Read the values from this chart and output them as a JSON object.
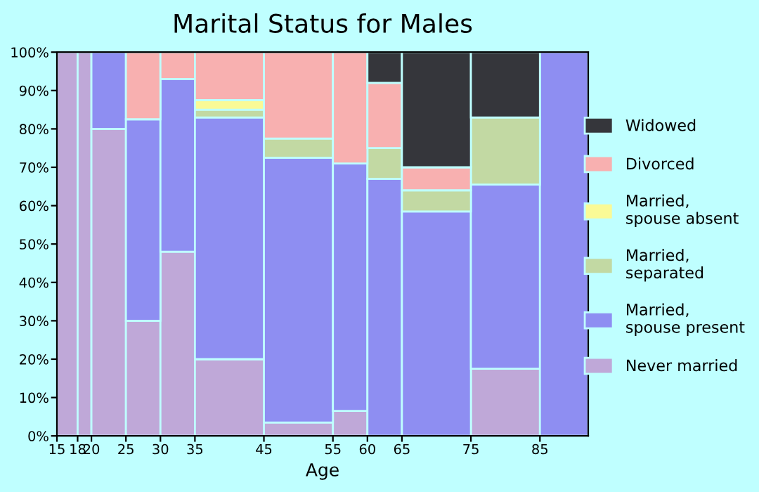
{
  "chart_data": {
    "type": "bar",
    "stacked": true,
    "title": "Marital Status for Males",
    "xlabel": "Age",
    "x": [
      16.5,
      19,
      22.5,
      27.5,
      32.5,
      40,
      50,
      57.5,
      62.5,
      70,
      80,
      88.5
    ],
    "xlim": [
      15,
      92
    ],
    "xticks": [
      15,
      18,
      20,
      25,
      30,
      35,
      45,
      55,
      60,
      65,
      75,
      85
    ],
    "ylim": [
      0,
      100
    ],
    "yticks": [
      {
        "value": 0,
        "label": "0%"
      },
      {
        "value": 10,
        "label": "10%"
      },
      {
        "value": 20,
        "label": "20%"
      },
      {
        "value": 30,
        "label": "30%"
      },
      {
        "value": 40,
        "label": "40%"
      },
      {
        "value": 50,
        "label": "50%"
      },
      {
        "value": 60,
        "label": "60%"
      },
      {
        "value": 70,
        "label": "70%"
      },
      {
        "value": 80,
        "label": "80%"
      },
      {
        "value": 90,
        "label": "90%"
      },
      {
        "value": 100,
        "label": "100%"
      }
    ],
    "legend": "right",
    "grid": false,
    "series": [
      {
        "name": "Never married",
        "color": "#bfa8d8",
        "values": [
          100,
          100,
          80,
          30,
          48,
          20,
          3.5,
          6.5,
          0,
          0,
          17.5,
          0
        ]
      },
      {
        "name": "Married,\nspouse present",
        "color": "#8e8ef2",
        "values": [
          0,
          0,
          20,
          52.5,
          45,
          63,
          69,
          64.5,
          67,
          58.5,
          48,
          100
        ]
      },
      {
        "name": "Married,\nseparated",
        "color": "#c2d9a3",
        "values": [
          0,
          0,
          0,
          0,
          0,
          2,
          5,
          0,
          8,
          5.5,
          17.5,
          0
        ]
      },
      {
        "name": "Married,\nspouse absent",
        "color": "#fafa96",
        "values": [
          0,
          0,
          0,
          0,
          0,
          2.5,
          0,
          0,
          0,
          0,
          0,
          0
        ]
      },
      {
        "name": "Divorced",
        "color": "#f8b0b0",
        "values": [
          0,
          0,
          0,
          17.5,
          7,
          12.5,
          22.5,
          29,
          17,
          6,
          0,
          0
        ]
      },
      {
        "name": "Widowed",
        "color": "#35363b",
        "values": [
          0,
          0,
          0,
          0,
          0,
          0,
          0,
          0,
          8,
          30,
          17,
          0
        ]
      }
    ]
  }
}
